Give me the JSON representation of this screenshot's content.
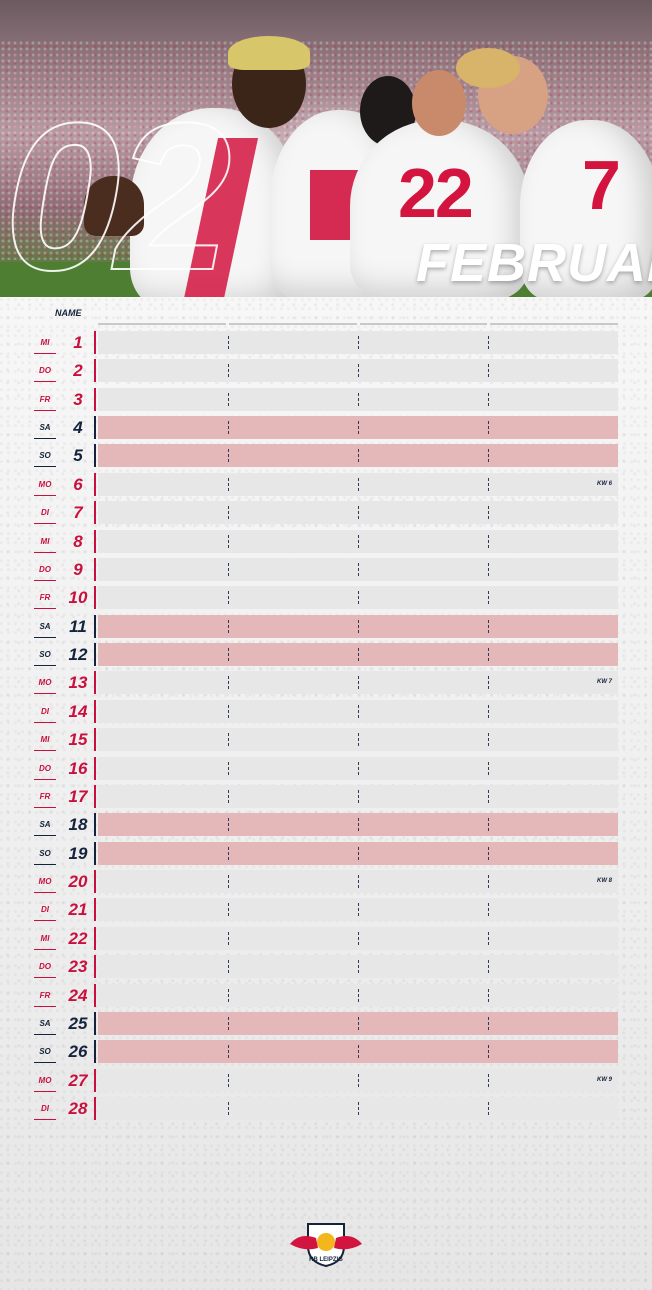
{
  "header": {
    "month_number": "02",
    "month_name": "FEBRUAR",
    "jersey_numbers": [
      "22",
      "7"
    ],
    "jersey_text": "RB LEIPZIG"
  },
  "table": {
    "name_label": "NAME",
    "rows": [
      {
        "dow": "MI",
        "date": "1",
        "weekend": false,
        "kw": ""
      },
      {
        "dow": "DO",
        "date": "2",
        "weekend": false,
        "kw": ""
      },
      {
        "dow": "FR",
        "date": "3",
        "weekend": false,
        "kw": ""
      },
      {
        "dow": "SA",
        "date": "4",
        "weekend": true,
        "kw": ""
      },
      {
        "dow": "SO",
        "date": "5",
        "weekend": true,
        "kw": ""
      },
      {
        "dow": "MO",
        "date": "6",
        "weekend": false,
        "kw": "KW 6"
      },
      {
        "dow": "DI",
        "date": "7",
        "weekend": false,
        "kw": ""
      },
      {
        "dow": "MI",
        "date": "8",
        "weekend": false,
        "kw": ""
      },
      {
        "dow": "DO",
        "date": "9",
        "weekend": false,
        "kw": ""
      },
      {
        "dow": "FR",
        "date": "10",
        "weekend": false,
        "kw": ""
      },
      {
        "dow": "SA",
        "date": "11",
        "weekend": true,
        "kw": ""
      },
      {
        "dow": "SO",
        "date": "12",
        "weekend": true,
        "kw": ""
      },
      {
        "dow": "MO",
        "date": "13",
        "weekend": false,
        "kw": "KW 7"
      },
      {
        "dow": "DI",
        "date": "14",
        "weekend": false,
        "kw": ""
      },
      {
        "dow": "MI",
        "date": "15",
        "weekend": false,
        "kw": ""
      },
      {
        "dow": "DO",
        "date": "16",
        "weekend": false,
        "kw": ""
      },
      {
        "dow": "FR",
        "date": "17",
        "weekend": false,
        "kw": ""
      },
      {
        "dow": "SA",
        "date": "18",
        "weekend": true,
        "kw": ""
      },
      {
        "dow": "SO",
        "date": "19",
        "weekend": true,
        "kw": ""
      },
      {
        "dow": "MO",
        "date": "20",
        "weekend": false,
        "kw": "KW 8"
      },
      {
        "dow": "DI",
        "date": "21",
        "weekend": false,
        "kw": ""
      },
      {
        "dow": "MI",
        "date": "22",
        "weekend": false,
        "kw": ""
      },
      {
        "dow": "DO",
        "date": "23",
        "weekend": false,
        "kw": ""
      },
      {
        "dow": "FR",
        "date": "24",
        "weekend": false,
        "kw": ""
      },
      {
        "dow": "SA",
        "date": "25",
        "weekend": true,
        "kw": ""
      },
      {
        "dow": "SO",
        "date": "26",
        "weekend": true,
        "kw": ""
      },
      {
        "dow": "MO",
        "date": "27",
        "weekend": false,
        "kw": "KW 9"
      },
      {
        "dow": "DI",
        "date": "28",
        "weekend": false,
        "kw": ""
      }
    ]
  },
  "logo": {
    "text": "RB LEIPZIG",
    "colors": {
      "red": "#d2143f",
      "navy": "#14223b",
      "gold": "#f3b71b"
    }
  },
  "colors": {
    "accent_red": "#c8103e",
    "navy": "#14223b",
    "weekday_bar": "#e7e7e7",
    "weekend_bar": "#e4b7b9"
  }
}
